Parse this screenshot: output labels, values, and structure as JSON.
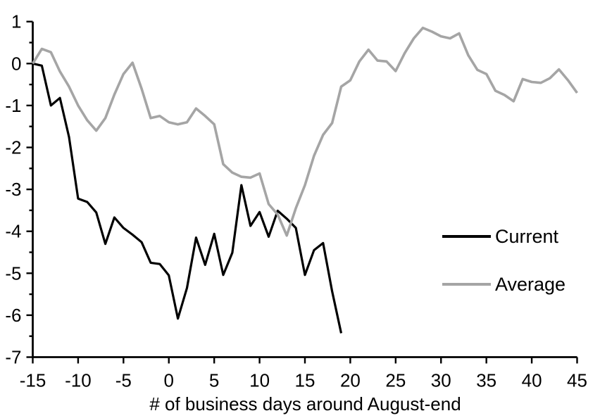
{
  "chart_data": {
    "type": "line",
    "title": "",
    "xlabel": "# of business days around August-end",
    "ylabel": "",
    "xlim": [
      -15,
      45
    ],
    "ylim": [
      -7,
      1
    ],
    "grid": false,
    "x_ticks": [
      -15,
      -10,
      -5,
      0,
      5,
      10,
      15,
      20,
      25,
      30,
      35,
      40,
      45
    ],
    "y_ticks": [
      1,
      0,
      -1,
      -2,
      -3,
      -4,
      -5,
      -6,
      -7
    ],
    "y_minor_tick_step": 0.5,
    "legend_position": "right-middle",
    "axis_color": "#000000",
    "series": [
      {
        "name": "Current",
        "color": "#000000",
        "width": 3.2,
        "x": [
          -15,
          -14,
          -13,
          -12,
          -11,
          -10,
          -9,
          -8,
          -7,
          -6,
          -5,
          -4,
          -3,
          -2,
          -1,
          0,
          1,
          2,
          3,
          4,
          5,
          6,
          7,
          8,
          9,
          10,
          11,
          12,
          13,
          14,
          15,
          16,
          17,
          18,
          19
        ],
        "values": [
          0,
          -0.05,
          -1.0,
          -0.82,
          -1.75,
          -3.22,
          -3.3,
          -3.55,
          -4.3,
          -3.67,
          -3.92,
          -4.08,
          -4.26,
          -4.75,
          -4.78,
          -5.05,
          -6.08,
          -5.35,
          -4.15,
          -4.8,
          -4.06,
          -5.04,
          -4.51,
          -2.9,
          -3.87,
          -3.54,
          -4.13,
          -3.51,
          -3.7,
          -3.92,
          -5.04,
          -4.45,
          -4.28,
          -5.43,
          -6.43
        ]
      },
      {
        "name": "Average",
        "color": "#a5a5a5",
        "width": 3.6,
        "x": [
          -15,
          -14,
          -13,
          -12,
          -11,
          -10,
          -9,
          -8,
          -7,
          -6,
          -5,
          -4,
          -3,
          -2,
          -1,
          0,
          1,
          2,
          3,
          4,
          5,
          6,
          7,
          8,
          9,
          10,
          11,
          12,
          13,
          14,
          15,
          16,
          17,
          18,
          19,
          20,
          21,
          22,
          23,
          24,
          25,
          26,
          27,
          28,
          29,
          30,
          31,
          32,
          33,
          34,
          35,
          36,
          37,
          38,
          39,
          40,
          41,
          42,
          43,
          44,
          45
        ],
        "values": [
          0,
          0.35,
          0.27,
          -0.19,
          -0.55,
          -1.0,
          -1.35,
          -1.6,
          -1.3,
          -0.74,
          -0.25,
          0.02,
          -0.6,
          -1.3,
          -1.25,
          -1.4,
          -1.45,
          -1.4,
          -1.07,
          -1.25,
          -1.45,
          -2.4,
          -2.6,
          -2.7,
          -2.72,
          -2.62,
          -3.35,
          -3.6,
          -4.1,
          -3.45,
          -2.9,
          -2.2,
          -1.7,
          -1.42,
          -0.55,
          -0.4,
          0.05,
          0.33,
          0.07,
          0.05,
          -0.18,
          0.25,
          0.6,
          0.85,
          0.76,
          0.65,
          0.6,
          0.72,
          0.2,
          -0.15,
          -0.25,
          -0.65,
          -0.75,
          -0.9,
          -0.37,
          -0.44,
          -0.46,
          -0.35,
          -0.14,
          -0.4,
          -0.7
        ]
      }
    ]
  },
  "legend": {
    "items": [
      {
        "label": "Current"
      },
      {
        "label": "Average"
      }
    ]
  }
}
